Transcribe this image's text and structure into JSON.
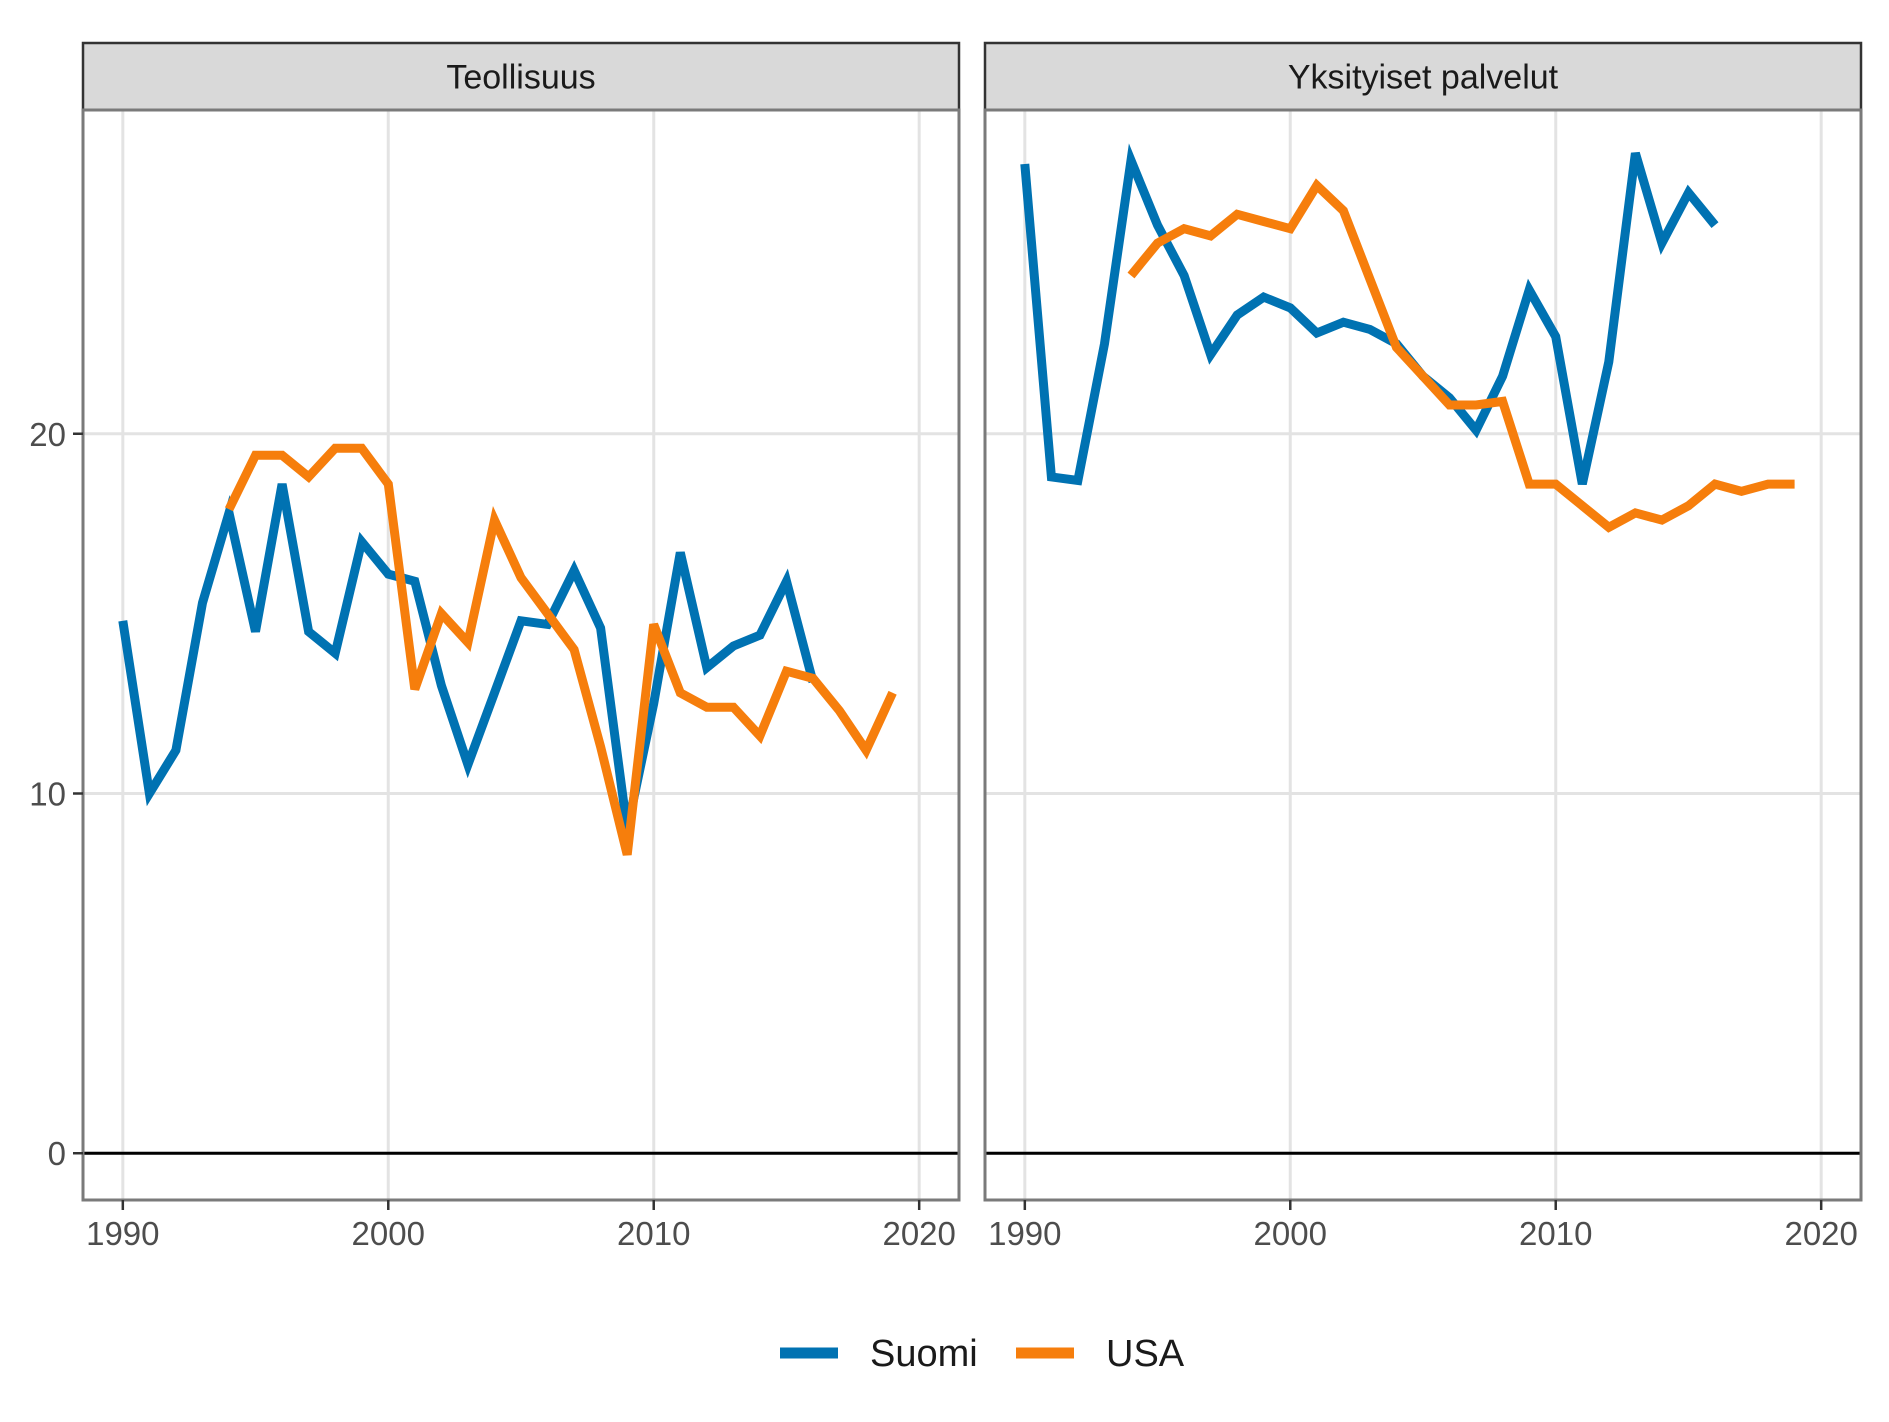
{
  "chart_data": {
    "type": "line",
    "layout": "faceted",
    "x_ticks": [
      1990,
      2000,
      2010,
      2020
    ],
    "y_ticks": [
      0,
      10,
      20
    ],
    "xlim": [
      1988.5,
      2021.5
    ],
    "ylim": [
      -1.3,
      29
    ],
    "grid": true,
    "zero_line": true,
    "legend": {
      "position": "bottom",
      "entries": [
        {
          "label": "Suomi",
          "color": "#0072B2"
        },
        {
          "label": "USA",
          "color": "#F67E0C"
        }
      ]
    },
    "colors": {
      "Suomi": "#0072B2",
      "USA": "#F67E0C"
    },
    "panels": [
      {
        "title": "Teollisuus",
        "series": [
          {
            "name": "Suomi",
            "x": [
              1990,
              1991,
              1992,
              1993,
              1994,
              1995,
              1996,
              1997,
              1998,
              1999,
              2000,
              2001,
              2002,
              2003,
              2004,
              2005,
              2006,
              2007,
              2008,
              2009,
              2010,
              2011,
              2012,
              2013,
              2014,
              2015,
              2016
            ],
            "values": [
              14.8,
              10.0,
              11.2,
              15.3,
              17.8,
              14.5,
              18.6,
              14.5,
              13.9,
              17.0,
              16.1,
              15.9,
              13.0,
              10.8,
              12.8,
              14.8,
              14.7,
              16.2,
              14.6,
              9.0,
              12.5,
              16.7,
              13.5,
              14.1,
              14.4,
              15.9,
              13.1
            ]
          },
          {
            "name": "USA",
            "x": [
              1994,
              1995,
              1996,
              1997,
              1998,
              1999,
              2000,
              2001,
              2002,
              2003,
              2004,
              2005,
              2006,
              2007,
              2008,
              2009,
              2010,
              2011,
              2012,
              2013,
              2014,
              2015,
              2016,
              2017,
              2018,
              2019
            ],
            "values": [
              17.9,
              19.4,
              19.4,
              18.8,
              19.6,
              19.6,
              18.6,
              12.9,
              15.0,
              14.2,
              17.6,
              16.0,
              15.0,
              14.0,
              11.3,
              8.3,
              14.7,
              12.8,
              12.4,
              12.4,
              11.6,
              13.4,
              13.2,
              12.3,
              11.2,
              12.8
            ]
          }
        ]
      },
      {
        "title": "Yksityiset palvelut",
        "series": [
          {
            "name": "Suomi",
            "x": [
              1990,
              1991,
              1992,
              1993,
              1994,
              1995,
              1996,
              1997,
              1998,
              1999,
              2000,
              2001,
              2002,
              2003,
              2004,
              2005,
              2006,
              2007,
              2008,
              2009,
              2010,
              2011,
              2012,
              2013,
              2014,
              2015,
              2016
            ],
            "values": [
              27.5,
              18.8,
              18.7,
              22.5,
              27.6,
              25.8,
              24.4,
              22.2,
              23.3,
              23.8,
              23.5,
              22.8,
              23.1,
              22.9,
              22.5,
              21.6,
              21.0,
              20.1,
              21.6,
              24.0,
              22.7,
              18.6,
              22.0,
              27.8,
              25.3,
              26.7,
              25.8
            ]
          },
          {
            "name": "USA",
            "x": [
              1994,
              1995,
              1996,
              1997,
              1998,
              1999,
              2000,
              2001,
              2002,
              2003,
              2004,
              2005,
              2006,
              2007,
              2008,
              2009,
              2010,
              2011,
              2012,
              2013,
              2014,
              2015,
              2016,
              2017,
              2018,
              2019
            ],
            "values": [
              24.4,
              25.3,
              25.7,
              25.5,
              26.1,
              25.9,
              25.7,
              26.9,
              26.2,
              24.3,
              22.4,
              21.6,
              20.8,
              20.8,
              20.9,
              18.6,
              18.6,
              18.0,
              17.4,
              17.8,
              17.6,
              18.0,
              18.6,
              18.4,
              18.6,
              18.6
            ]
          }
        ]
      }
    ]
  }
}
